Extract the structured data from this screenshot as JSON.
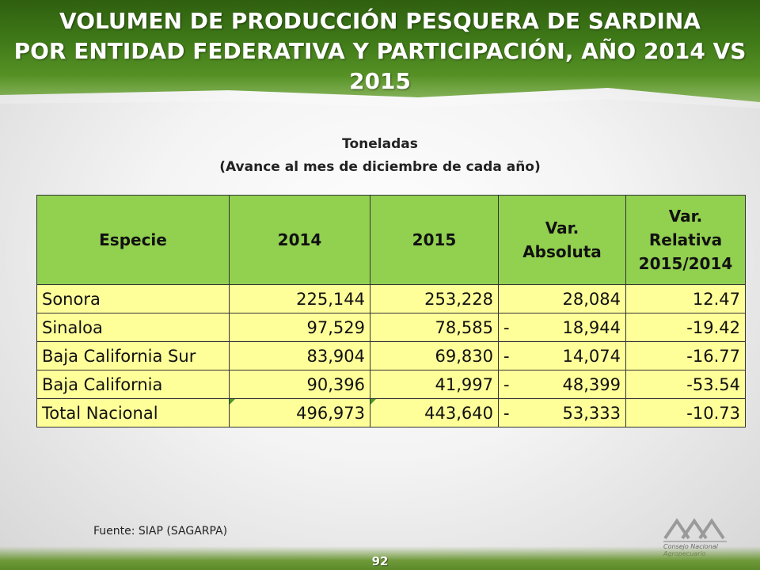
{
  "header": {
    "title_line1": "VOLUMEN DE PRODUCCIÓN PESQUERA  DE SARDINA",
    "title_line2": "POR ENTIDAD FEDERATIVA Y PARTICIPACIÓN, AÑO 2014 VS 2015"
  },
  "subtitle": {
    "line1": "Toneladas",
    "line2": "(Avance al mes de diciembre de cada año)"
  },
  "table": {
    "columns": [
      "Especie",
      "2014",
      "2015",
      "Var. Absoluta",
      "Var. Relativa 2015/2014"
    ],
    "rows": [
      {
        "especie": "Sonora",
        "y2014": "225,144",
        "y2015": "253,228",
        "var_abs_sign": "",
        "var_abs": "28,084",
        "var_rel": "12.47"
      },
      {
        "especie": "Sinaloa",
        "y2014": "97,529",
        "y2015": "78,585",
        "var_abs_sign": "-",
        "var_abs": "18,944",
        "var_rel": "-19.42"
      },
      {
        "especie": "Baja California Sur",
        "y2014": "83,904",
        "y2015": "69,830",
        "var_abs_sign": "-",
        "var_abs": "14,074",
        "var_rel": "-16.77"
      },
      {
        "especie": "Baja California",
        "y2014": "90,396",
        "y2015": "41,997",
        "var_abs_sign": "-",
        "var_abs": "48,399",
        "var_rel": "-53.54"
      },
      {
        "especie": "Total Nacional",
        "y2014": "496,973",
        "y2015": "443,640",
        "var_abs_sign": "-",
        "var_abs": "53,333",
        "var_rel": "-10.73"
      }
    ]
  },
  "footer": {
    "source": "Fuente: SIAP (SAGARPA)",
    "page_number": "92",
    "logo_caption": "Consejo Nacional Agropecuario"
  },
  "colors": {
    "header_green": "#3f7a18",
    "table_header": "#92d050",
    "table_cell": "#ffff99"
  }
}
